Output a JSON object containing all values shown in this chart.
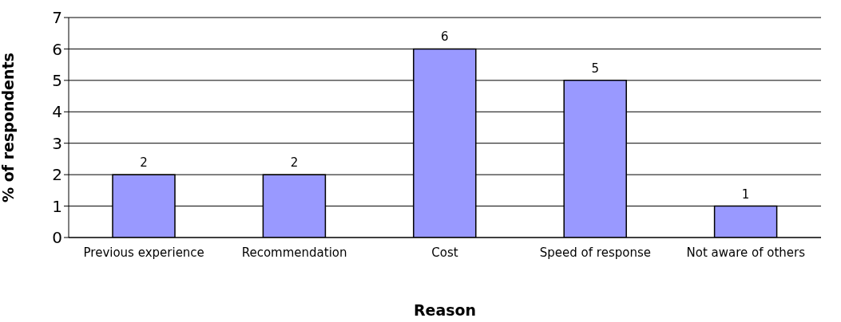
{
  "chart_data": {
    "type": "bar",
    "xlabel": "Reason",
    "ylabel": "% of respondents",
    "categories": [
      "Previous experience",
      "Recommendation",
      "Cost",
      "Speed of response",
      "Not aware of others"
    ],
    "values": [
      2,
      2,
      6,
      5,
      1
    ],
    "color": "#9999ff",
    "ylim": [
      0,
      7
    ],
    "yticks": [
      0,
      1,
      2,
      3,
      4,
      5,
      6,
      7
    ],
    "grid": "y",
    "data_labels": true,
    "legend": false
  }
}
